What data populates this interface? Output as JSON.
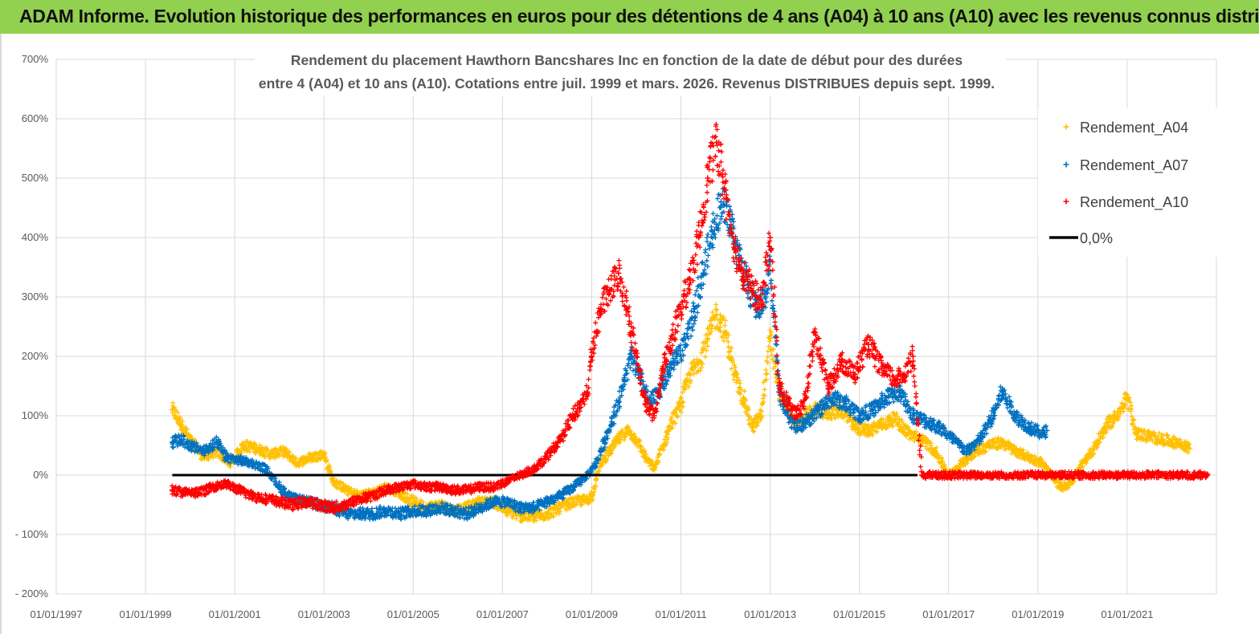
{
  "header": {
    "title": "ADAM Informe. Evolution historique des performances en euros pour des détentions de 4 ans (A04) à 10 ans (A10) avec les revenus connus distribués"
  },
  "colors": {
    "header_bg": "#92d050",
    "a04": "#ffc000",
    "a07": "#0070c0",
    "a10": "#ff0000",
    "zero": "#000000",
    "grid": "#d9d9d9"
  },
  "chart_data": {
    "type": "scatter",
    "title_lines": [
      "Rendement du placement Hawthorn Bancshares Inc en fonction de la date de début pour des durées",
      "entre 4 (A04) et 10 ans (A10). Cotations entre juil. 1999 et mars. 2026. Revenus DISTRIBUES depuis sept. 1999."
    ],
    "xlabel": "",
    "ylabel": "",
    "ylim": [
      -200,
      700
    ],
    "y_unit": "%",
    "xlim": [
      1997.0,
      2023.0
    ],
    "x_tick_labels": [
      "01/01/1997",
      "01/01/1999",
      "01/01/2001",
      "01/01/2003",
      "01/01/2005",
      "01/01/2007",
      "01/01/2009",
      "01/01/2011",
      "01/01/2013",
      "01/01/2015",
      "01/01/2017",
      "01/01/2019",
      "01/01/2021"
    ],
    "x_tick_values": [
      1997,
      1999,
      2001,
      2003,
      2005,
      2007,
      2009,
      2011,
      2013,
      2015,
      2017,
      2019,
      2021
    ],
    "y_tick_labels": [
      "700%",
      "600%",
      "500%",
      "400%",
      "300%",
      "200%",
      "100%",
      "0%",
      "- 100%",
      "- 200%"
    ],
    "y_tick_values": [
      700,
      600,
      500,
      400,
      300,
      200,
      100,
      0,
      -100,
      -200
    ],
    "legend_position": "top-right",
    "series": [
      {
        "name": "Rendement_A04",
        "marker": "plus",
        "x": [
          1999.6,
          1999.8,
          2000.0,
          2000.3,
          2000.6,
          2000.9,
          2001.2,
          2001.5,
          2001.8,
          2002.1,
          2002.4,
          2002.7,
          2003.0,
          2003.2,
          2003.5,
          2003.8,
          2004.1,
          2004.4,
          2004.7,
          2005.0,
          2005.3,
          2005.6,
          2005.9,
          2006.2,
          2006.5,
          2006.8,
          2007.1,
          2007.4,
          2007.7,
          2008.0,
          2008.3,
          2008.6,
          2008.9,
          2009.0,
          2009.2,
          2009.4,
          2009.6,
          2009.8,
          2010.0,
          2010.2,
          2010.4,
          2010.6,
          2010.8,
          2011.0,
          2011.2,
          2011.4,
          2011.6,
          2011.8,
          2012.0,
          2012.2,
          2012.4,
          2012.6,
          2012.8,
          2013.0,
          2013.2,
          2013.4,
          2013.6,
          2013.8,
          2014.0,
          2014.3,
          2014.6,
          2014.9,
          2015.2,
          2015.5,
          2015.8,
          2016.1,
          2016.4,
          2016.7,
          2017.0,
          2017.3,
          2017.6,
          2017.9,
          2018.2,
          2018.5,
          2018.8,
          2019.1,
          2019.3,
          2019.5,
          2019.7,
          2019.9,
          2020.1,
          2020.3,
          2020.5,
          2020.7,
          2020.9,
          2021.0,
          2021.2,
          2021.5,
          2021.8,
          2022.1,
          2022.4
        ],
        "y": [
          110,
          85,
          60,
          30,
          40,
          20,
          50,
          45,
          35,
          40,
          20,
          30,
          35,
          -10,
          -25,
          -35,
          -30,
          -20,
          -30,
          -45,
          -55,
          -50,
          -60,
          -55,
          -45,
          -45,
          -60,
          -68,
          -70,
          -65,
          -55,
          -45,
          -42,
          -35,
          20,
          40,
          60,
          75,
          60,
          30,
          10,
          50,
          90,
          120,
          170,
          190,
          230,
          270,
          240,
          170,
          130,
          80,
          100,
          230,
          140,
          110,
          85,
          100,
          110,
          105,
          110,
          80,
          75,
          85,
          95,
          70,
          60,
          40,
          0,
          20,
          40,
          50,
          55,
          40,
          30,
          20,
          0,
          -20,
          -15,
          5,
          30,
          50,
          80,
          95,
          115,
          130,
          70,
          65,
          60,
          55,
          45
        ]
      },
      {
        "name": "Rendement_A07",
        "marker": "plus",
        "x": [
          1999.6,
          1999.8,
          2000.0,
          2000.3,
          2000.6,
          2000.8,
          2001.1,
          2001.4,
          2001.7,
          2002.0,
          2002.3,
          2002.6,
          2002.9,
          2003.2,
          2003.5,
          2003.8,
          2004.1,
          2004.4,
          2004.7,
          2005.0,
          2005.3,
          2005.6,
          2005.9,
          2006.2,
          2006.5,
          2006.8,
          2007.1,
          2007.4,
          2007.7,
          2008.0,
          2008.3,
          2008.6,
          2008.9,
          2009.1,
          2009.3,
          2009.5,
          2009.7,
          2009.9,
          2010.1,
          2010.3,
          2010.5,
          2010.7,
          2010.9,
          2011.1,
          2011.3,
          2011.5,
          2011.7,
          2011.9,
          2012.1,
          2012.3,
          2012.5,
          2012.7,
          2012.9,
          2013.0,
          2013.2,
          2013.4,
          2013.6,
          2013.8,
          2014.1,
          2014.4,
          2014.7,
          2015.0,
          2015.3,
          2015.6,
          2015.9,
          2016.2,
          2016.5,
          2016.8,
          2017.1,
          2017.4,
          2017.7,
          2018.0,
          2018.2,
          2018.5,
          2018.8,
          2019.1,
          2019.2
        ],
        "y": [
          55,
          60,
          50,
          40,
          55,
          30,
          25,
          20,
          10,
          -20,
          -40,
          -45,
          -50,
          -55,
          -65,
          -65,
          -65,
          -60,
          -65,
          -60,
          -60,
          -55,
          -60,
          -65,
          -55,
          -45,
          -45,
          -55,
          -55,
          -45,
          -35,
          -20,
          0,
          20,
          60,
          100,
          150,
          200,
          160,
          120,
          140,
          170,
          200,
          220,
          280,
          340,
          410,
          460,
          430,
          370,
          320,
          280,
          300,
          360,
          140,
          100,
          80,
          90,
          110,
          130,
          120,
          100,
          110,
          130,
          140,
          100,
          90,
          80,
          60,
          40,
          60,
          100,
          140,
          100,
          80,
          70,
          75
        ]
      },
      {
        "name": "Rendement_A10",
        "marker": "plus",
        "x": [
          1999.6,
          1999.9,
          2000.2,
          2000.5,
          2000.8,
          2001.1,
          2001.4,
          2001.7,
          2002.0,
          2002.3,
          2002.6,
          2002.9,
          2003.2,
          2003.5,
          2003.8,
          2004.1,
          2004.4,
          2004.7,
          2005.0,
          2005.3,
          2005.6,
          2005.9,
          2006.2,
          2006.5,
          2006.8,
          2007.1,
          2007.4,
          2007.7,
          2008.0,
          2008.3,
          2008.6,
          2008.9,
          2009.0,
          2009.2,
          2009.4,
          2009.6,
          2009.8,
          2010.0,
          2010.2,
          2010.4,
          2010.6,
          2010.8,
          2011.0,
          2011.2,
          2011.4,
          2011.6,
          2011.8,
          2012.0,
          2012.2,
          2012.4,
          2012.6,
          2012.8,
          2013.0,
          2013.2,
          2013.4,
          2013.6,
          2013.8,
          2014.0,
          2014.3,
          2014.6,
          2014.9,
          2015.2,
          2015.5,
          2015.8,
          2016.0,
          2016.2,
          2016.4,
          2016.6,
          2016.8,
          2017.0,
          2017.5,
          2018.0,
          2018.5,
          2019.0,
          2019.5,
          2020.0,
          2020.5,
          2021.0,
          2021.5,
          2022.0,
          2022.5,
          2022.8
        ],
        "y": [
          -25,
          -30,
          -30,
          -20,
          -15,
          -25,
          -35,
          -40,
          -45,
          -50,
          -45,
          -50,
          -55,
          -50,
          -40,
          -35,
          -25,
          -20,
          -15,
          -20,
          -20,
          -25,
          -25,
          -20,
          -20,
          -10,
          0,
          10,
          30,
          60,
          100,
          140,
          200,
          280,
          310,
          340,
          280,
          200,
          120,
          100,
          180,
          230,
          280,
          330,
          400,
          500,
          560,
          480,
          380,
          340,
          310,
          290,
          400,
          150,
          120,
          100,
          130,
          240,
          150,
          190,
          170,
          220,
          180,
          160,
          170,
          200,
          0,
          0,
          0,
          0,
          0,
          0,
          0,
          0,
          0,
          0,
          0,
          0,
          0,
          0,
          0,
          0
        ]
      },
      {
        "name": "0,0%",
        "marker": "line",
        "x": [
          1999.6,
          2016.3
        ],
        "y": [
          0,
          0
        ]
      }
    ]
  }
}
